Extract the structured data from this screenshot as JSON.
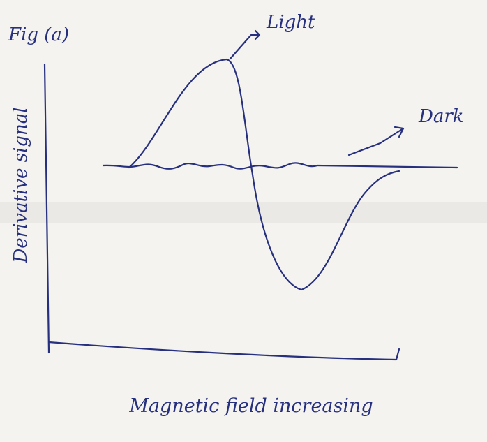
{
  "figure_label": "Fig (a)",
  "light_label": "Light",
  "dark_label": "Dark",
  "y_axis_label": "Derivative signal",
  "x_axis_label": "Magnetic field increasing"
}
